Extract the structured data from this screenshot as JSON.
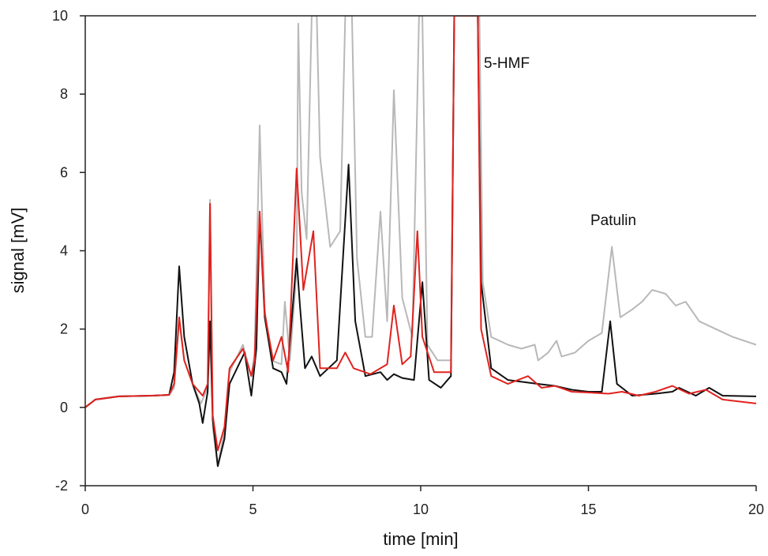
{
  "chart_data": {
    "type": "line",
    "xlabel": "time [min]",
    "ylabel": "signal [mV]",
    "xlim": [
      0,
      20
    ],
    "ylim": [
      -2,
      10
    ],
    "xticks": [
      0,
      5,
      10,
      15,
      20
    ],
    "yticks": [
      -2,
      0,
      2,
      4,
      6,
      8,
      10
    ],
    "grid": false,
    "annotations": [
      {
        "text": "5-HMF",
        "x": 12.1,
        "y": 8.8
      },
      {
        "text": "Patulin",
        "x": 15.2,
        "y": 4.7
      }
    ],
    "series": [
      {
        "color": "#b8b8b8",
        "points": [
          [
            0,
            0
          ],
          [
            0.3,
            0.2
          ],
          [
            1,
            0.28
          ],
          [
            2,
            0.3
          ],
          [
            2.5,
            0.32
          ],
          [
            2.65,
            0.5
          ],
          [
            2.8,
            2.2
          ],
          [
            2.95,
            1.2
          ],
          [
            3.2,
            0.6
          ],
          [
            3.45,
            0.1
          ],
          [
            3.65,
            0.5
          ],
          [
            3.72,
            5.3
          ],
          [
            3.8,
            -0.5
          ],
          [
            3.95,
            -1.5
          ],
          [
            4.15,
            -0.6
          ],
          [
            4.3,
            0.9
          ],
          [
            4.7,
            1.6
          ],
          [
            4.95,
            0.8
          ],
          [
            5.05,
            1.4
          ],
          [
            5.2,
            7.2
          ],
          [
            5.35,
            2.5
          ],
          [
            5.55,
            1.2
          ],
          [
            5.85,
            1.1
          ],
          [
            5.95,
            2.7
          ],
          [
            6.1,
            1.2
          ],
          [
            6.3,
            3.5
          ],
          [
            6.35,
            9.8
          ],
          [
            6.45,
            5.5
          ],
          [
            6.6,
            4.3
          ],
          [
            6.75,
            10
          ],
          [
            6.9,
            10
          ],
          [
            7.0,
            6.4
          ],
          [
            7.3,
            4.1
          ],
          [
            7.6,
            4.5
          ],
          [
            7.75,
            10
          ],
          [
            7.95,
            10
          ],
          [
            8.1,
            3.8
          ],
          [
            8.35,
            1.8
          ],
          [
            8.55,
            1.8
          ],
          [
            8.8,
            5.0
          ],
          [
            9.0,
            2.2
          ],
          [
            9.2,
            8.1
          ],
          [
            9.45,
            2.8
          ],
          [
            9.75,
            1.8
          ],
          [
            9.95,
            10
          ],
          [
            10.05,
            10
          ],
          [
            10.2,
            1.6
          ],
          [
            10.5,
            1.2
          ],
          [
            10.9,
            1.2
          ],
          [
            11.0,
            10
          ],
          [
            11.75,
            10
          ],
          [
            11.85,
            3.2
          ],
          [
            12.1,
            1.8
          ],
          [
            12.6,
            1.6
          ],
          [
            13.0,
            1.5
          ],
          [
            13.4,
            1.6
          ],
          [
            13.5,
            1.2
          ],
          [
            13.8,
            1.4
          ],
          [
            14.05,
            1.7
          ],
          [
            14.2,
            1.3
          ],
          [
            14.6,
            1.4
          ],
          [
            15.0,
            1.7
          ],
          [
            15.4,
            1.9
          ],
          [
            15.7,
            4.1
          ],
          [
            15.95,
            2.3
          ],
          [
            16.3,
            2.5
          ],
          [
            16.6,
            2.7
          ],
          [
            16.9,
            3.0
          ],
          [
            17.3,
            2.9
          ],
          [
            17.6,
            2.6
          ],
          [
            17.9,
            2.7
          ],
          [
            18.3,
            2.2
          ],
          [
            18.8,
            2.0
          ],
          [
            19.3,
            1.8
          ],
          [
            20,
            1.6
          ]
        ]
      },
      {
        "color": "#111111",
        "points": [
          [
            0,
            0
          ],
          [
            0.3,
            0.2
          ],
          [
            1,
            0.28
          ],
          [
            2,
            0.3
          ],
          [
            2.5,
            0.32
          ],
          [
            2.65,
            0.9
          ],
          [
            2.8,
            3.6
          ],
          [
            2.95,
            1.8
          ],
          [
            3.2,
            0.6
          ],
          [
            3.4,
            0.1
          ],
          [
            3.5,
            -0.4
          ],
          [
            3.65,
            0.4
          ],
          [
            3.72,
            2.2
          ],
          [
            3.8,
            -0.3
          ],
          [
            3.95,
            -1.5
          ],
          [
            4.15,
            -0.8
          ],
          [
            4.3,
            0.6
          ],
          [
            4.75,
            1.4
          ],
          [
            4.95,
            0.3
          ],
          [
            5.1,
            1.5
          ],
          [
            5.2,
            4.9
          ],
          [
            5.35,
            2.3
          ],
          [
            5.6,
            1.0
          ],
          [
            5.85,
            0.9
          ],
          [
            6.0,
            0.6
          ],
          [
            6.3,
            3.8
          ],
          [
            6.4,
            2.6
          ],
          [
            6.55,
            1.0
          ],
          [
            6.75,
            1.3
          ],
          [
            7.0,
            0.8
          ],
          [
            7.5,
            1.2
          ],
          [
            7.85,
            6.2
          ],
          [
            8.05,
            2.2
          ],
          [
            8.35,
            0.8
          ],
          [
            8.8,
            0.9
          ],
          [
            9.0,
            0.7
          ],
          [
            9.2,
            0.85
          ],
          [
            9.45,
            0.75
          ],
          [
            9.8,
            0.7
          ],
          [
            10.05,
            3.2
          ],
          [
            10.25,
            0.7
          ],
          [
            10.6,
            0.5
          ],
          [
            10.9,
            0.8
          ],
          [
            11.0,
            10
          ],
          [
            11.7,
            10
          ],
          [
            11.8,
            3.2
          ],
          [
            12.1,
            1.0
          ],
          [
            12.6,
            0.7
          ],
          [
            13.5,
            0.6
          ],
          [
            14.0,
            0.55
          ],
          [
            14.5,
            0.45
          ],
          [
            15.0,
            0.4
          ],
          [
            15.4,
            0.4
          ],
          [
            15.65,
            2.2
          ],
          [
            15.85,
            0.6
          ],
          [
            16.3,
            0.3
          ],
          [
            17.0,
            0.35
          ],
          [
            17.5,
            0.4
          ],
          [
            17.7,
            0.5
          ],
          [
            18.2,
            0.3
          ],
          [
            18.6,
            0.5
          ],
          [
            19.0,
            0.3
          ],
          [
            20,
            0.28
          ]
        ]
      },
      {
        "color": "#e0231f",
        "points": [
          [
            0,
            0
          ],
          [
            0.3,
            0.2
          ],
          [
            1,
            0.28
          ],
          [
            2,
            0.3
          ],
          [
            2.5,
            0.32
          ],
          [
            2.65,
            0.6
          ],
          [
            2.8,
            2.3
          ],
          [
            2.95,
            1.2
          ],
          [
            3.2,
            0.6
          ],
          [
            3.5,
            0.3
          ],
          [
            3.65,
            0.6
          ],
          [
            3.72,
            5.2
          ],
          [
            3.8,
            -0.2
          ],
          [
            3.95,
            -1.1
          ],
          [
            4.15,
            -0.5
          ],
          [
            4.3,
            1.0
          ],
          [
            4.7,
            1.5
          ],
          [
            4.95,
            0.8
          ],
          [
            5.05,
            1.2
          ],
          [
            5.2,
            5.0
          ],
          [
            5.35,
            2.4
          ],
          [
            5.6,
            1.2
          ],
          [
            5.85,
            1.8
          ],
          [
            6.05,
            0.9
          ],
          [
            6.3,
            6.1
          ],
          [
            6.5,
            3.0
          ],
          [
            6.8,
            4.5
          ],
          [
            7.0,
            1.0
          ],
          [
            7.5,
            1.0
          ],
          [
            7.75,
            1.4
          ],
          [
            8.0,
            1.0
          ],
          [
            8.5,
            0.85
          ],
          [
            9.0,
            1.1
          ],
          [
            9.2,
            2.6
          ],
          [
            9.45,
            1.1
          ],
          [
            9.7,
            1.3
          ],
          [
            9.9,
            4.5
          ],
          [
            10.05,
            1.8
          ],
          [
            10.4,
            0.9
          ],
          [
            10.9,
            0.9
          ],
          [
            11.0,
            10
          ],
          [
            11.7,
            10
          ],
          [
            11.8,
            2.0
          ],
          [
            12.1,
            0.8
          ],
          [
            12.6,
            0.6
          ],
          [
            13.2,
            0.8
          ],
          [
            13.6,
            0.5
          ],
          [
            14.0,
            0.55
          ],
          [
            14.5,
            0.4
          ],
          [
            15.0,
            0.38
          ],
          [
            15.6,
            0.35
          ],
          [
            16.0,
            0.4
          ],
          [
            16.5,
            0.3
          ],
          [
            17.0,
            0.4
          ],
          [
            17.5,
            0.55
          ],
          [
            18.0,
            0.35
          ],
          [
            18.5,
            0.45
          ],
          [
            19.0,
            0.2
          ],
          [
            20,
            0.1
          ]
        ]
      }
    ]
  }
}
